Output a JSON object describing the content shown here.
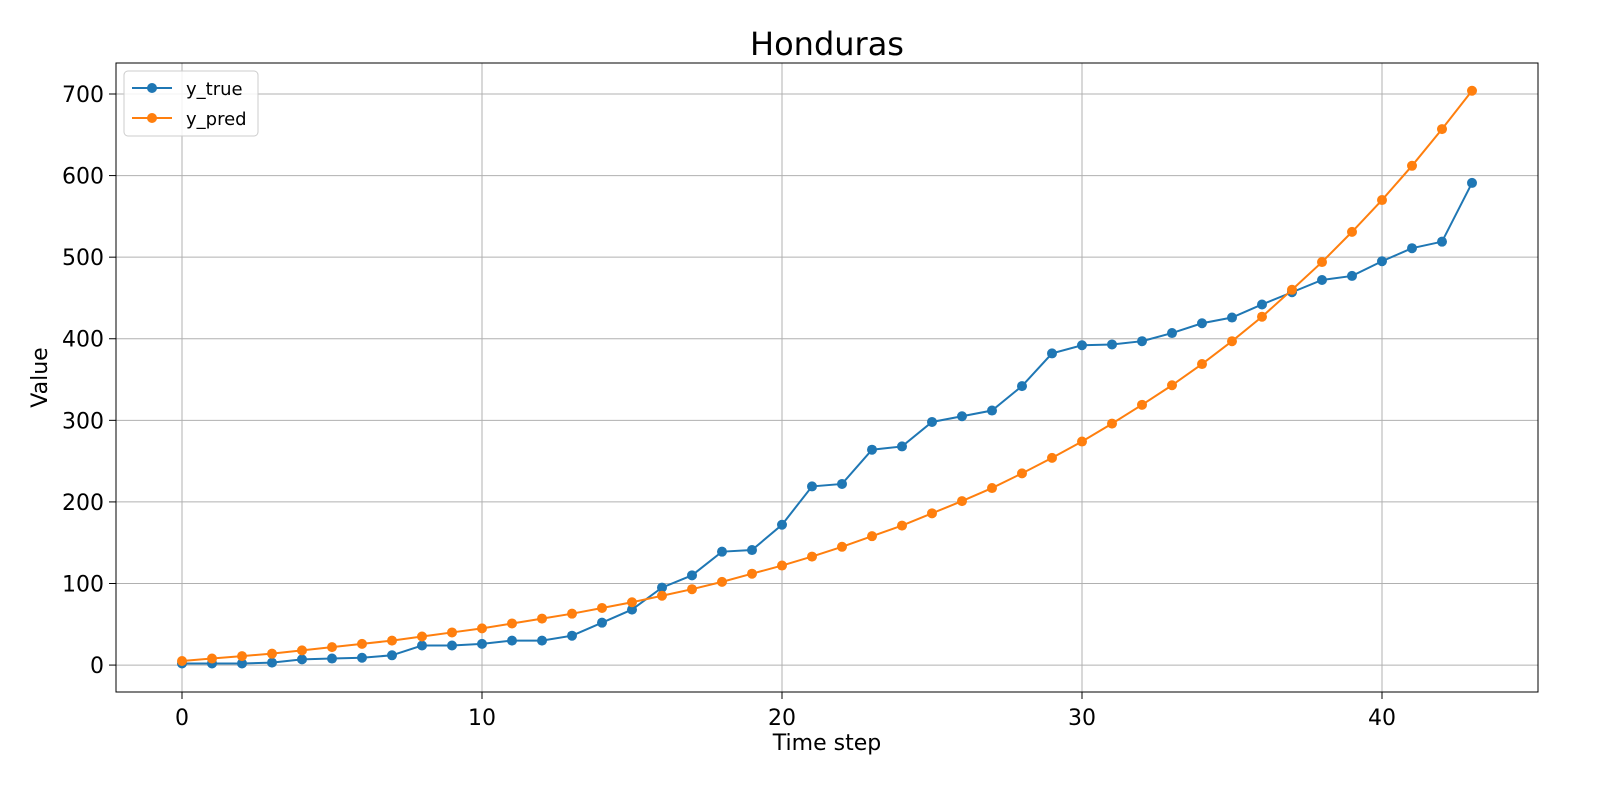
{
  "chart_data": {
    "type": "line",
    "title": "Honduras",
    "xlabel": "Time step",
    "ylabel": "Value",
    "xlim": [
      -2.2,
      45.2
    ],
    "ylim": [
      -33,
      738
    ],
    "xticks": [
      0,
      10,
      20,
      30,
      40
    ],
    "yticks": [
      0,
      100,
      200,
      300,
      400,
      500,
      600,
      700
    ],
    "grid": true,
    "legend_position": "top-left",
    "x": [
      0,
      1,
      2,
      3,
      4,
      5,
      6,
      7,
      8,
      9,
      10,
      11,
      12,
      13,
      14,
      15,
      16,
      17,
      18,
      19,
      20,
      21,
      22,
      23,
      24,
      25,
      26,
      27,
      28,
      29,
      30,
      31,
      32,
      33,
      34,
      35,
      36,
      37,
      38,
      39,
      40,
      41,
      42,
      43
    ],
    "series": [
      {
        "name": "y_true",
        "color": "#1f77b4",
        "values": [
          2,
          2,
          2,
          3,
          7,
          8,
          9,
          12,
          24,
          24,
          26,
          30,
          30,
          36,
          52,
          68,
          95,
          110,
          139,
          141,
          172,
          219,
          222,
          264,
          268,
          298,
          305,
          312,
          342,
          382,
          392,
          393,
          397,
          407,
          419,
          426,
          442,
          457,
          472,
          477,
          495,
          511,
          519,
          591
        ]
      },
      {
        "name": "y_pred",
        "color": "#ff7f0e",
        "values": [
          5,
          8,
          11,
          14,
          18,
          22,
          26,
          30,
          35,
          40,
          45,
          51,
          57,
          63,
          70,
          77,
          85,
          93,
          102,
          112,
          122,
          133,
          145,
          158,
          171,
          186,
          201,
          217,
          235,
          254,
          274,
          296,
          319,
          343,
          369,
          397,
          427,
          460,
          494,
          531,
          570,
          612,
          657,
          704
        ]
      }
    ]
  }
}
